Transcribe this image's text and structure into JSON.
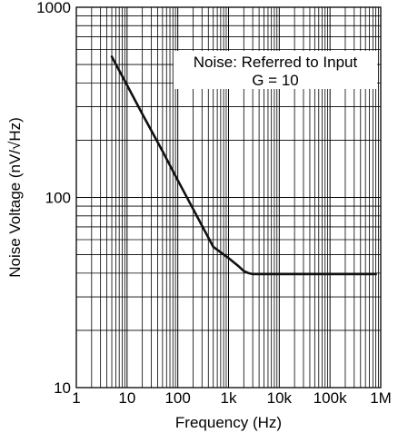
{
  "chart_data": {
    "type": "line",
    "title": "",
    "xlabel": "Frequency (Hz)",
    "ylabel": "Noise Voltage (nV/√Hz)",
    "x_scale": "log",
    "y_scale": "log",
    "xlim": [
      1,
      1000000
    ],
    "ylim": [
      10,
      1000
    ],
    "grid": true,
    "x_ticks": [
      1,
      10,
      100,
      1000,
      10000,
      100000,
      1000000
    ],
    "x_tick_labels": [
      "1",
      "10",
      "100",
      "1k",
      "10k",
      "100k",
      "1M"
    ],
    "y_ticks": [
      10,
      100,
      1000
    ],
    "y_tick_labels": [
      "10",
      "100",
      "1000"
    ],
    "annotation_lines": [
      "Noise: Referred to Input",
      "G = 10"
    ],
    "series": [
      {
        "x": [
          5,
          10,
          20,
          50,
          100,
          200,
          500,
          1000,
          1500,
          2000,
          2500,
          3000,
          5000,
          10000,
          50000,
          100000,
          300000,
          800000
        ],
        "y": [
          550,
          390,
          275,
          175,
          123,
          87,
          55,
          48,
          44,
          41,
          40,
          39.5,
          39.5,
          39.5,
          39.5,
          39.5,
          39.5,
          39.5
        ]
      }
    ]
  }
}
